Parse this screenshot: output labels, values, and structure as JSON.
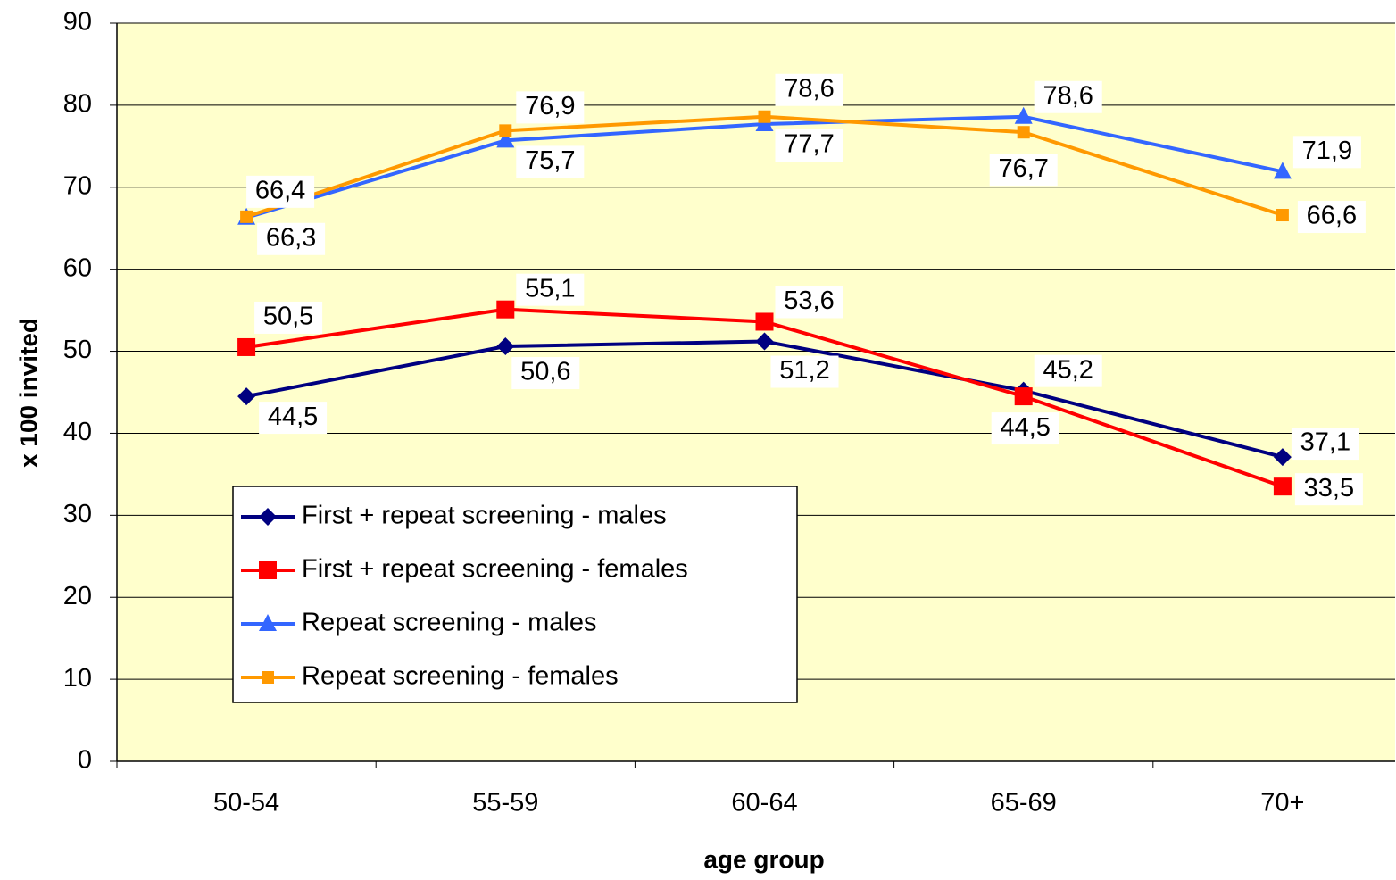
{
  "chart_data": {
    "type": "line",
    "xlabel": "age group",
    "ylabel": "x 100 invited",
    "categories": [
      "50-54",
      "55-59",
      "60-64",
      "65-69",
      "70+"
    ],
    "series": [
      {
        "name": "First + repeat screening - males",
        "color": "#000080",
        "marker": "diamond",
        "values": [
          44.5,
          50.6,
          51.2,
          45.2,
          37.1
        ],
        "value_labels": [
          "44,5",
          "50,6",
          "51,2",
          "45,2",
          "37,1"
        ]
      },
      {
        "name": "First + repeat screening - females",
        "color": "#ff0000",
        "marker": "square",
        "values": [
          50.5,
          55.1,
          53.6,
          44.5,
          33.5
        ],
        "value_labels": [
          "50,5",
          "55,1",
          "53,6",
          "44,5",
          "33,5"
        ]
      },
      {
        "name": "Repeat screening - males",
        "color": "#3366ff",
        "marker": "triangle",
        "values": [
          66.3,
          75.7,
          77.7,
          78.6,
          71.9
        ],
        "value_labels": [
          "66,3",
          "75,7",
          "77,7",
          "78,6",
          "71,9"
        ]
      },
      {
        "name": "Repeat screening - females",
        "color": "#ff9900",
        "marker": "small-square",
        "values": [
          66.4,
          76.9,
          78.6,
          76.7,
          66.6
        ],
        "value_labels": [
          "66,4",
          "76,9",
          "78,6",
          "76,7",
          "66,6"
        ]
      }
    ],
    "ylim": [
      0,
      90
    ],
    "yticks": [
      0,
      10,
      20,
      30,
      40,
      50,
      60,
      70,
      80,
      90
    ],
    "grid": true,
    "legend": "lower left",
    "background": "#ffffcc"
  }
}
